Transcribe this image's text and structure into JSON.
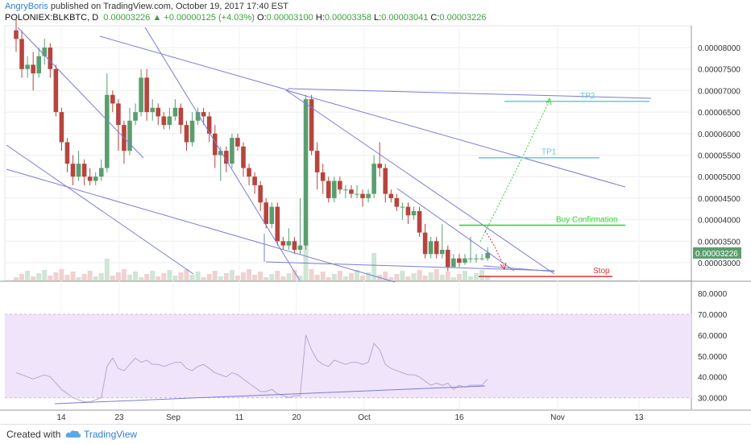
{
  "header": {
    "author": "AngryBoris",
    "published": "published on TradingView.com, October 19, 2017 17:40 EST",
    "symbol": "POLONIEX:BLKBTC, D",
    "last": "0.00003226",
    "change": "+0.00000125 (+4.03%)",
    "o_label": "O:",
    "o": "0.00003100",
    "h_label": "H:",
    "h": "0.00003358",
    "l_label": "L:",
    "l": "0.00003041",
    "c_label": "C:",
    "c": "0.00003226"
  },
  "footer": {
    "created": "Created with",
    "brand": "TradingView"
  },
  "colors": {
    "up": "#5a9e6f",
    "down": "#b5453e",
    "trend": "#7b7bd6",
    "tp": "#5ad0dc",
    "buy": "#2fd12f",
    "stop": "#e03030",
    "rsi_band": "#f0e4fb",
    "rsi_line": "#b8a7d0"
  },
  "chart_data": [
    {
      "type": "candlestick",
      "price_ticks": [
        "0.00008000",
        "0.00007500",
        "0.00007000",
        "0.00006500",
        "0.00006000",
        "0.00005500",
        "0.00005000",
        "0.00004500",
        "0.00004000",
        "0.00003500",
        "0.00003000"
      ],
      "last_price_label": "0.00003226",
      "x_ticks": [
        "14",
        "23",
        "Sep",
        "11",
        "20",
        "Oct",
        "16",
        "Nov",
        "13"
      ],
      "annotations": {
        "tp2": "TP2",
        "tp1": "TP1",
        "buy": "Buy Confirmation",
        "stop": "Stop"
      },
      "levels": {
        "tp2": 6.75e-05,
        "tp1": 5.44e-05,
        "buy": 3.87e-05,
        "stop": 2.68e-05
      },
      "candles": [
        [
          0,
          8.4,
          8.2,
          8.7,
          7.9
        ],
        [
          1,
          8.2,
          7.5,
          8.4,
          7.3
        ],
        [
          2,
          7.5,
          7.6,
          7.8,
          7.3
        ],
        [
          3,
          7.6,
          7.4,
          7.9,
          7.0
        ],
        [
          4,
          7.4,
          7.8,
          8.0,
          7.3
        ],
        [
          5,
          7.8,
          8.0,
          8.2,
          7.6
        ],
        [
          6,
          8.0,
          7.5,
          8.1,
          7.3
        ],
        [
          7,
          7.5,
          6.5,
          7.6,
          6.4
        ],
        [
          8,
          6.5,
          5.8,
          6.6,
          5.6
        ],
        [
          9,
          5.8,
          5.3,
          5.9,
          5.1
        ],
        [
          10,
          5.3,
          5.0,
          5.5,
          4.8
        ],
        [
          11,
          5.0,
          5.3,
          5.6,
          4.9
        ],
        [
          12,
          5.3,
          5.0,
          5.4,
          4.8
        ],
        [
          13,
          5.0,
          4.9,
          5.2,
          4.8
        ],
        [
          14,
          4.9,
          5.0,
          5.1,
          4.8
        ],
        [
          15,
          5.0,
          5.2,
          5.4,
          4.9
        ],
        [
          16,
          5.2,
          6.9,
          7.4,
          5.1
        ],
        [
          17,
          6.9,
          6.7,
          7.0,
          6.5
        ],
        [
          18,
          6.7,
          6.2,
          6.8,
          5.6
        ],
        [
          19,
          6.2,
          5.6,
          6.3,
          5.3
        ],
        [
          20,
          5.6,
          6.3,
          6.6,
          5.5
        ],
        [
          21,
          6.3,
          6.5,
          6.7,
          6.2
        ],
        [
          22,
          6.5,
          7.3,
          7.5,
          6.4
        ],
        [
          23,
          7.3,
          6.5,
          7.5,
          6.3
        ],
        [
          24,
          6.5,
          6.6,
          6.8,
          6.3
        ],
        [
          25,
          6.6,
          6.4,
          6.7,
          6.2
        ],
        [
          26,
          6.4,
          6.2,
          6.5,
          6.1
        ],
        [
          27,
          6.2,
          6.4,
          6.6,
          6.1
        ],
        [
          28,
          6.4,
          6.6,
          6.8,
          6.3
        ],
        [
          29,
          6.6,
          6.2,
          6.7,
          6.0
        ],
        [
          30,
          6.2,
          5.8,
          6.3,
          5.6
        ],
        [
          31,
          5.8,
          6.3,
          6.5,
          5.7
        ],
        [
          32,
          6.3,
          6.5,
          6.6,
          6.2
        ],
        [
          33,
          6.5,
          6.4,
          6.6,
          6.2
        ],
        [
          34,
          6.4,
          6.0,
          6.5,
          5.8
        ],
        [
          35,
          6.0,
          5.5,
          6.2,
          5.2
        ],
        [
          36,
          5.5,
          5.6,
          5.7,
          4.9
        ],
        [
          37,
          5.6,
          5.3,
          5.7,
          5.1
        ],
        [
          38,
          5.3,
          5.9,
          6.0,
          5.2
        ],
        [
          39,
          5.9,
          5.7,
          6.0,
          5.6
        ],
        [
          40,
          5.7,
          5.2,
          5.8,
          5.0
        ],
        [
          41,
          5.2,
          5.0,
          5.3,
          4.8
        ],
        [
          42,
          5.0,
          4.8,
          5.1,
          4.6
        ],
        [
          43,
          4.8,
          4.4,
          4.9,
          4.2
        ],
        [
          44,
          4.4,
          3.9,
          4.5,
          3.8
        ],
        [
          45,
          3.9,
          4.3,
          4.4,
          3.8
        ],
        [
          46,
          4.3,
          3.5,
          4.4,
          3.4
        ],
        [
          47,
          3.5,
          3.4,
          3.6,
          3.3
        ],
        [
          48,
          3.4,
          3.5,
          3.8,
          3.3
        ],
        [
          49,
          3.5,
          3.3,
          3.6,
          3.2
        ],
        [
          50,
          3.3,
          3.4,
          4.5,
          3.2
        ],
        [
          51,
          3.4,
          6.8,
          6.9,
          3.3
        ],
        [
          52,
          6.8,
          5.6,
          6.9,
          5.5
        ],
        [
          53,
          5.6,
          5.1,
          5.8,
          4.7
        ],
        [
          54,
          5.1,
          4.9,
          5.3,
          4.6
        ],
        [
          55,
          4.9,
          4.5,
          5.0,
          4.4
        ],
        [
          56,
          4.5,
          4.9,
          5.0,
          4.4
        ],
        [
          57,
          4.9,
          4.7,
          5.0,
          4.6
        ],
        [
          58,
          4.7,
          4.7,
          4.8,
          4.5
        ],
        [
          59,
          4.7,
          4.6,
          4.8,
          4.5
        ],
        [
          60,
          4.6,
          4.6,
          4.8,
          4.5
        ],
        [
          61,
          4.6,
          4.5,
          4.7,
          4.3
        ],
        [
          62,
          4.5,
          4.6,
          4.7,
          4.4
        ],
        [
          63,
          4.6,
          5.3,
          5.5,
          4.5
        ],
        [
          64,
          5.3,
          5.2,
          5.8,
          5.0
        ],
        [
          65,
          5.2,
          4.6,
          5.3,
          4.4
        ],
        [
          66,
          4.6,
          4.5,
          4.7,
          4.4
        ],
        [
          67,
          4.5,
          4.3,
          4.6,
          4.2
        ],
        [
          68,
          4.3,
          4.3,
          4.4,
          4.0
        ],
        [
          69,
          4.3,
          4.1,
          4.4,
          3.9
        ],
        [
          70,
          4.1,
          4.2,
          4.3,
          4.0
        ],
        [
          71,
          4.2,
          3.7,
          4.3,
          3.6
        ],
        [
          72,
          3.7,
          3.2,
          3.9,
          3.1
        ],
        [
          73,
          3.2,
          3.5,
          3.6,
          3.1
        ],
        [
          74,
          3.5,
          3.2,
          3.6,
          3.1
        ],
        [
          75,
          3.2,
          3.3,
          3.9,
          3.1
        ],
        [
          76,
          3.3,
          2.9,
          3.4,
          2.8
        ],
        [
          77,
          2.9,
          3.1,
          3.2,
          2.9
        ],
        [
          78,
          3.1,
          3.0,
          3.2,
          2.9
        ],
        [
          79,
          3.0,
          3.1,
          3.2,
          2.95
        ],
        [
          80,
          3.1,
          3.1,
          3.6,
          3.0
        ],
        [
          81,
          3.1,
          3.1,
          3.2,
          3.0
        ],
        [
          82,
          3.1,
          3.1,
          3.2,
          3.05
        ],
        [
          83,
          3.1,
          3.23,
          3.36,
          3.04
        ]
      ],
      "rsi_ticks": [
        "80.0000",
        "70.0000",
        "60.0000",
        "50.0000",
        "40.0000",
        "30.0000"
      ],
      "rsi_band": [
        30,
        70
      ],
      "rsi": [
        42,
        41,
        40,
        39,
        40,
        41,
        40,
        37,
        34,
        32,
        30,
        29,
        28,
        28,
        29,
        30,
        45,
        49,
        44,
        43,
        46,
        49,
        47,
        48,
        46,
        46,
        45,
        46,
        47,
        47,
        44,
        43,
        45,
        46,
        44,
        42,
        41,
        40,
        42,
        41,
        39,
        37,
        35,
        33,
        33,
        34,
        32,
        31,
        30,
        31,
        31,
        60,
        53,
        48,
        46,
        45,
        48,
        47,
        46,
        47,
        47,
        46,
        47,
        56,
        53,
        46,
        44,
        43,
        42,
        41,
        41,
        40,
        38,
        36,
        37,
        36,
        37,
        34,
        36,
        35,
        36,
        36,
        36,
        39
      ]
    }
  ]
}
